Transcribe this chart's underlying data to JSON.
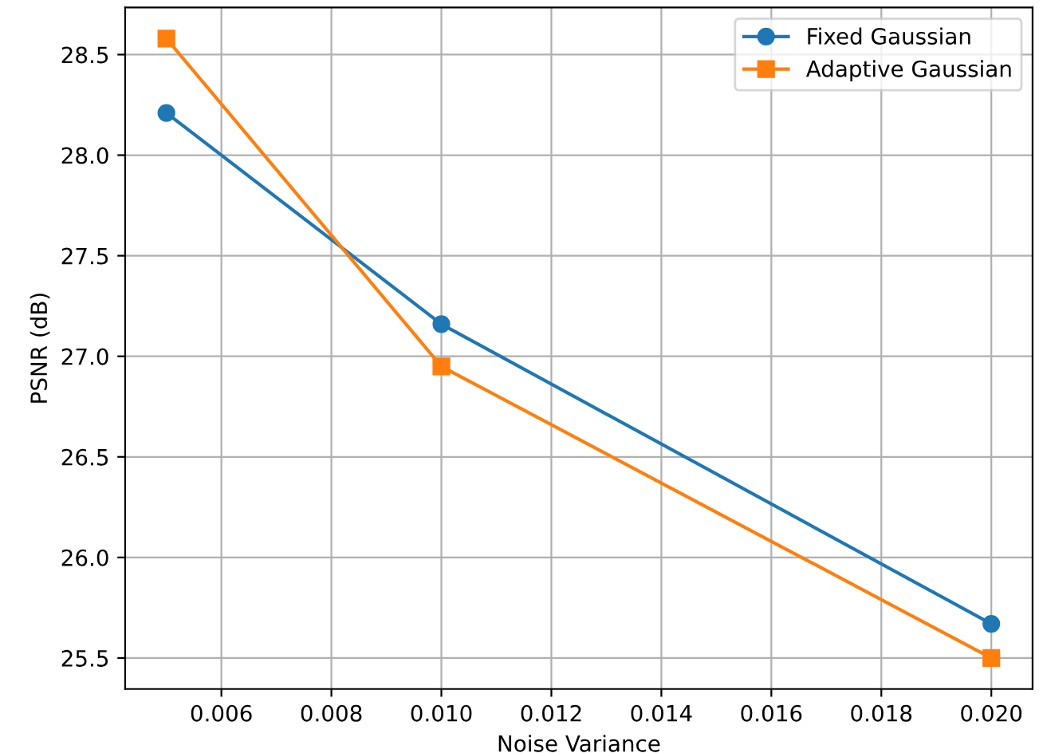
{
  "chart_data": {
    "type": "line",
    "xlabel": "Noise Variance",
    "ylabel": "PSNR (dB)",
    "x": [
      0.005,
      0.01,
      0.02
    ],
    "series": [
      {
        "name": "Fixed Gaussian",
        "color": "#1f77b4",
        "values": [
          28.21,
          27.16,
          25.67
        ],
        "marker": "circle"
      },
      {
        "name": "Adaptive Gaussian",
        "color": "#ff7f0e",
        "values": [
          28.58,
          26.95,
          25.5
        ],
        "marker": "square"
      }
    ],
    "xlim": [
      0.00425,
      0.02075
    ],
    "xticks": [
      {
        "value": 0.006,
        "label": "0.006"
      },
      {
        "value": 0.008,
        "label": "0.008"
      },
      {
        "value": 0.01,
        "label": "0.010"
      },
      {
        "value": 0.012,
        "label": "0.012"
      },
      {
        "value": 0.014,
        "label": "0.014"
      },
      {
        "value": 0.016,
        "label": "0.016"
      },
      {
        "value": 0.018,
        "label": "0.018"
      },
      {
        "value": 0.02,
        "label": "0.020"
      }
    ],
    "ylim": [
      25.346,
      28.734
    ],
    "yticks": [
      {
        "value": 25.5,
        "label": "25.5"
      },
      {
        "value": 26.0,
        "label": "26.0"
      },
      {
        "value": 26.5,
        "label": "26.5"
      },
      {
        "value": 27.0,
        "label": "27.0"
      },
      {
        "value": 27.5,
        "label": "27.5"
      },
      {
        "value": 28.0,
        "label": "28.0"
      },
      {
        "value": 28.5,
        "label": "28.5"
      }
    ],
    "grid": true,
    "legend": "top right",
    "line_style": "solid"
  }
}
